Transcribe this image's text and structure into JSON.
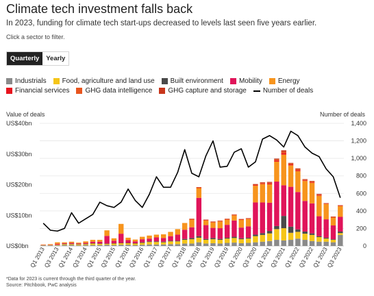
{
  "title": "Climate tech investment falls back",
  "subtitle": "In 2023, funding for climate tech start-ups decreased to levels last seen five years earlier.",
  "hint": "Click a sector to filter.",
  "toggle": {
    "quarterly": "Quarterly",
    "yearly": "Yearly"
  },
  "legend": [
    {
      "label": "Industrials",
      "color": "#8a8a8a"
    },
    {
      "label": "Food, agriculture and land use",
      "color": "#f5c518"
    },
    {
      "label": "Built environment",
      "color": "#4a4a4a"
    },
    {
      "label": "Mobility",
      "color": "#e0145a"
    },
    {
      "label": "Energy",
      "color": "#f7941d"
    },
    {
      "label": "Financial services",
      "color": "#e8141e"
    },
    {
      "label": "GHG data intelligence",
      "color": "#e8551e"
    },
    {
      "label": "GHG capture and storage",
      "color": "#c8361c"
    },
    {
      "label": "Number of deals",
      "color": "#000000"
    }
  ],
  "axes": {
    "left_title": "Value of deals",
    "right_title": "Number of deals"
  },
  "notes": {
    "footnote": "*Data for 2023 is current through the third quarter of the year.",
    "source": "Source: Pitchbook, PwC analysis"
  },
  "chart_data": {
    "type": "bar",
    "stacked": true,
    "x": [
      "Q1 2013",
      "Q2 2013",
      "Q3 2013",
      "Q4 2013",
      "Q1 2014",
      "Q2 2014",
      "Q3 2014",
      "Q4 2014",
      "Q1 2015",
      "Q2 2015",
      "Q3 2015",
      "Q4 2015",
      "Q1 2016",
      "Q2 2016",
      "Q3 2016",
      "Q4 2016",
      "Q1 2017",
      "Q2 2017",
      "Q3 2017",
      "Q4 2017",
      "Q1 2018",
      "Q2 2018",
      "Q3 2018",
      "Q4 2018",
      "Q1 2019",
      "Q2 2019",
      "Q3 2019",
      "Q4 2019",
      "Q1 2020",
      "Q2 2020",
      "Q3 2020",
      "Q4 2020",
      "Q1 2021",
      "Q2 2021",
      "Q3 2021",
      "Q4 2021",
      "Q1 2022",
      "Q2 2022",
      "Q3 2022",
      "Q4 2022",
      "Q1 2023",
      "Q2 2023",
      "Q3 2023"
    ],
    "x_tick_labels": [
      "Q1 2013",
      "Q3 2013",
      "Q1 2014",
      "Q3 2014",
      "Q1 2015",
      "Q3 2015",
      "Q1 2016",
      "Q3 2016",
      "Q1 2017",
      "Q3 2017",
      "Q1 2018",
      "Q3 2018",
      "Q1 2019",
      "Q3 2019",
      "Q1 2020",
      "Q3 2020",
      "Q1 2021",
      "Q3 2021",
      "Q1 2022",
      "Q3 2022",
      "Q1 2023",
      "Q3 2023"
    ],
    "series": [
      {
        "name": "Industrials",
        "color": "#8a8a8a",
        "axis": "left",
        "values": [
          0.2,
          0.2,
          0.2,
          0.3,
          0.3,
          0.2,
          0.3,
          0.3,
          0.3,
          0.4,
          0.3,
          0.4,
          0.4,
          0.3,
          0.4,
          0.5,
          0.5,
          0.5,
          0.6,
          0.6,
          0.8,
          0.8,
          1.2,
          0.8,
          0.9,
          0.8,
          1.0,
          1.1,
          0.9,
          1.0,
          1.2,
          1.4,
          1.6,
          2.0,
          1.8,
          2.0,
          2.4,
          2.0,
          1.6,
          1.4,
          1.4,
          1.2,
          3.6
        ]
      },
      {
        "name": "Food, agriculture and land use",
        "color": "#f5c518",
        "axis": "left",
        "values": [
          0.1,
          0.1,
          0.2,
          0.3,
          0.3,
          0.3,
          0.3,
          0.5,
          0.4,
          0.3,
          0.5,
          0.5,
          0.5,
          0.5,
          0.6,
          0.8,
          0.8,
          0.7,
          0.9,
          0.9,
          1.2,
          1.4,
          1.5,
          1.2,
          1.3,
          1.2,
          1.4,
          1.5,
          1.3,
          1.4,
          2.0,
          2.2,
          2.5,
          3.5,
          4.0,
          2.3,
          2.2,
          2.0,
          2.0,
          1.5,
          1.0,
          0.8,
          0.6
        ]
      },
      {
        "name": "Built environment",
        "color": "#4a4a4a",
        "axis": "left",
        "values": [
          0.0,
          0.0,
          0.0,
          0.1,
          0.1,
          0.1,
          0.1,
          0.1,
          0.1,
          0.1,
          0.1,
          0.1,
          0.1,
          0.1,
          0.2,
          0.2,
          0.2,
          0.2,
          0.2,
          0.2,
          0.3,
          0.4,
          0.5,
          0.3,
          0.4,
          0.3,
          0.3,
          0.4,
          0.3,
          0.3,
          0.5,
          0.6,
          0.8,
          1.0,
          4.0,
          2.0,
          0.8,
          0.7,
          0.5,
          0.3,
          0.3,
          0.2,
          0.5
        ]
      },
      {
        "name": "Mobility",
        "color": "#e0145a",
        "axis": "left",
        "values": [
          0.1,
          0.1,
          0.3,
          0.2,
          0.3,
          0.2,
          0.3,
          0.5,
          0.6,
          2.5,
          0.8,
          3.0,
          0.9,
          0.6,
          1.0,
          0.9,
          1.3,
          1.2,
          1.5,
          2.0,
          3.0,
          3.5,
          12.5,
          4.5,
          3.3,
          3.5,
          4.2,
          5.3,
          3.5,
          3.7,
          10.5,
          10.0,
          9.2,
          14.5,
          10.0,
          13.0,
          12.2,
          10.0,
          9.8,
          6.5,
          6.0,
          4.5,
          4.8
        ]
      },
      {
        "name": "Energy",
        "color": "#f7941d",
        "axis": "left",
        "values": [
          0.1,
          0.2,
          0.5,
          0.3,
          0.4,
          0.3,
          0.5,
          0.6,
          0.6,
          1.8,
          0.8,
          3.2,
          0.8,
          0.6,
          0.8,
          1.0,
          0.9,
          1.2,
          1.4,
          1.8,
          2.2,
          2.5,
          3.2,
          1.5,
          1.8,
          2.2,
          1.7,
          1.7,
          2.5,
          2.4,
          5.5,
          6.0,
          6.0,
          6.5,
          10.0,
          7.0,
          6.8,
          6.5,
          6.7,
          6.7,
          5.0,
          2.6,
          3.5
        ]
      },
      {
        "name": "Financial services",
        "color": "#e8141e",
        "axis": "left",
        "values": [
          0.0,
          0.0,
          0.0,
          0.0,
          0.0,
          0.0,
          0.0,
          0.0,
          0.0,
          0.0,
          0.0,
          0.0,
          0.0,
          0.0,
          0.0,
          0.0,
          0.0,
          0.0,
          0.0,
          0.0,
          0.0,
          0.1,
          0.1,
          0.1,
          0.1,
          0.1,
          0.1,
          0.1,
          0.1,
          0.1,
          0.2,
          0.2,
          0.3,
          0.4,
          0.5,
          0.3,
          0.3,
          0.2,
          0.2,
          0.2,
          0.1,
          0.1,
          0.1
        ]
      },
      {
        "name": "GHG data intelligence",
        "color": "#e8551e",
        "axis": "left",
        "values": [
          0.0,
          0.0,
          0.0,
          0.0,
          0.0,
          0.0,
          0.0,
          0.0,
          0.0,
          0.0,
          0.0,
          0.0,
          0.0,
          0.0,
          0.0,
          0.0,
          0.0,
          0.0,
          0.0,
          0.0,
          0.0,
          0.1,
          0.1,
          0.1,
          0.1,
          0.1,
          0.1,
          0.1,
          0.1,
          0.1,
          0.1,
          0.2,
          0.2,
          0.3,
          0.4,
          0.3,
          0.3,
          0.2,
          0.2,
          0.2,
          0.1,
          0.1,
          0.1
        ]
      },
      {
        "name": "GHG capture and storage",
        "color": "#c8361c",
        "axis": "left",
        "values": [
          0.0,
          0.0,
          0.0,
          0.0,
          0.0,
          0.0,
          0.0,
          0.0,
          0.0,
          0.0,
          0.0,
          0.0,
          0.0,
          0.0,
          0.0,
          0.0,
          0.0,
          0.0,
          0.0,
          0.0,
          0.0,
          0.1,
          0.1,
          0.1,
          0.1,
          0.1,
          0.1,
          0.1,
          0.1,
          0.1,
          0.2,
          0.2,
          0.3,
          0.3,
          0.5,
          0.2,
          0.3,
          0.2,
          0.2,
          0.2,
          0.1,
          0.1,
          0.1
        ]
      },
      {
        "name": "Number of deals",
        "color": "#000000",
        "type": "line",
        "axis": "right",
        "values": [
          260,
          180,
          170,
          200,
          380,
          260,
          310,
          360,
          500,
          460,
          440,
          500,
          650,
          520,
          440,
          590,
          790,
          670,
          670,
          840,
          1100,
          830,
          790,
          1030,
          1200,
          900,
          910,
          1070,
          1110,
          900,
          960,
          1220,
          1260,
          1210,
          1130,
          1310,
          1260,
          1130,
          1060,
          1020,
          880,
          790,
          550
        ]
      }
    ],
    "ylim_left": [
      0,
      40
    ],
    "ylim_right": [
      0,
      1400
    ],
    "y_ticks_left": [
      "US$0bn",
      "US$10bn",
      "US$20bn",
      "US$30bn",
      "US$40bn"
    ],
    "y_ticks_right": [
      "0",
      "200",
      "400",
      "600",
      "800",
      "1,000",
      "1,200",
      "1,400"
    ],
    "ylabel_left": "Value of deals",
    "ylabel_right": "Number of deals",
    "grid": true
  }
}
